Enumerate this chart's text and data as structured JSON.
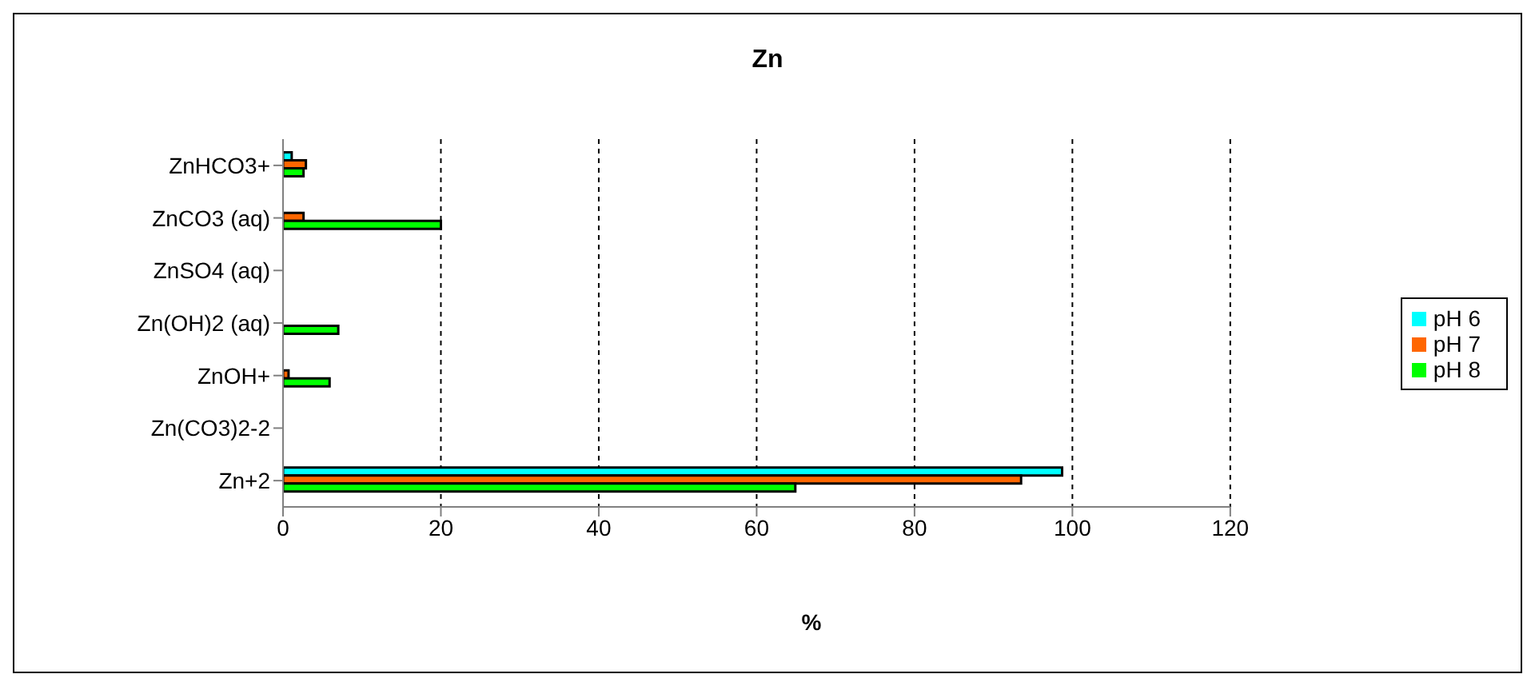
{
  "chart_data": {
    "type": "bar",
    "orientation": "horizontal",
    "title": "Zn",
    "xlabel": "%",
    "categories": [
      "ZnHCO3+",
      "ZnCO3 (aq)",
      "ZnSO4 (aq)",
      "Zn(OH)2 (aq)",
      "ZnOH+",
      "Zn(CO3)2-2",
      "Zn+2"
    ],
    "series": [
      {
        "name": "pH 6",
        "color": "#00ffff",
        "values": [
          1.1,
          null,
          null,
          null,
          null,
          null,
          98.7
        ]
      },
      {
        "name": "pH 7",
        "color": "#ff6600",
        "values": [
          2.9,
          2.6,
          null,
          null,
          0.7,
          null,
          93.5
        ]
      },
      {
        "name": "pH 8",
        "color": "#00ff00",
        "values": [
          2.6,
          20.0,
          null,
          7.0,
          5.9,
          null,
          64.9
        ]
      }
    ],
    "xlim": [
      0,
      120
    ],
    "xticks": [
      0,
      20,
      40,
      60,
      80,
      100,
      120
    ],
    "grid": "x",
    "legend": "right"
  }
}
